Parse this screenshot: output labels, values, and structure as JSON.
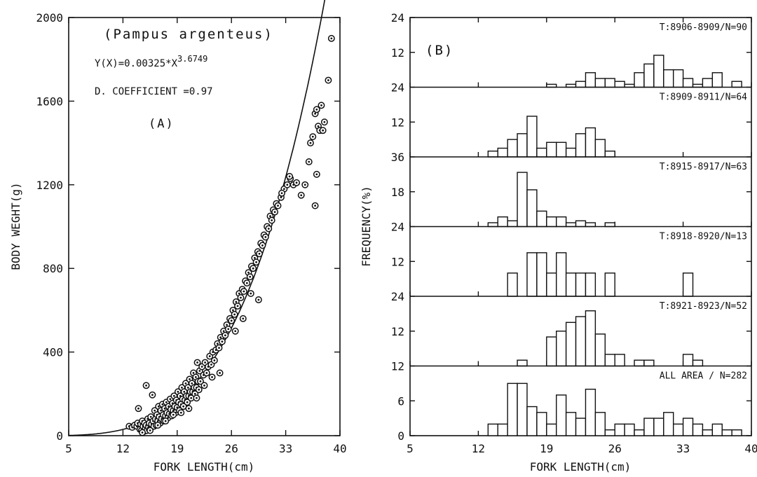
{
  "chart_data": [
    {
      "panel": "A",
      "type": "scatter",
      "species_label": "(Pampus argenteus)",
      "equation_text": "Y(X)=0.00325*X",
      "equation_exponent_text": "3.6749",
      "coefficient_text": "D. COEFFICIENT =0.97",
      "panel_label": "(A)",
      "xlabel": "FORK LENGTH(cm)",
      "ylabel": "BODY WEGHT(g)",
      "xlim": [
        5,
        40
      ],
      "ylim": [
        0,
        2000
      ],
      "x_ticks": [
        "5",
        "12",
        "19",
        "26",
        "33",
        "40"
      ],
      "y_ticks": [
        "0",
        "400",
        "800",
        "1200",
        "1600",
        "2000"
      ],
      "curve": {
        "a": 0.00325,
        "b": 3.6749,
        "x_range": [
          5,
          38.9
        ]
      },
      "points": [
        [
          12.8,
          45
        ],
        [
          13.2,
          40
        ],
        [
          13.5,
          50
        ],
        [
          13.8,
          45
        ],
        [
          13.9,
          60
        ],
        [
          14,
          130
        ],
        [
          14.2,
          30
        ],
        [
          14.3,
          55
        ],
        [
          14.4,
          25
        ],
        [
          14.5,
          70
        ],
        [
          14.6,
          45
        ],
        [
          14.7,
          20
        ],
        [
          14.8,
          60
        ],
        [
          14.9,
          35
        ],
        [
          15,
          50
        ],
        [
          15,
          240
        ],
        [
          15.1,
          25
        ],
        [
          15.2,
          80
        ],
        [
          15.3,
          40
        ],
        [
          15.4,
          60
        ],
        [
          15.5,
          30
        ],
        [
          15.6,
          90
        ],
        [
          15.7,
          55
        ],
        [
          15.8,
          195
        ],
        [
          15.9,
          70
        ],
        [
          16,
          45
        ],
        [
          16.1,
          120
        ],
        [
          16.2,
          80
        ],
        [
          16.3,
          50
        ],
        [
          16.4,
          100
        ],
        [
          16.5,
          70
        ],
        [
          16.6,
          140
        ],
        [
          16.7,
          90
        ],
        [
          16.8,
          60
        ],
        [
          16.9,
          120
        ],
        [
          17,
          80
        ],
        [
          17.1,
          150
        ],
        [
          17.2,
          100
        ],
        [
          17.3,
          70
        ],
        [
          17.4,
          130
        ],
        [
          17.5,
          95
        ],
        [
          17.6,
          160
        ],
        [
          17.7,
          110
        ],
        [
          17.8,
          85
        ],
        [
          17.9,
          140
        ],
        [
          18,
          105
        ],
        [
          18.1,
          175
        ],
        [
          18.2,
          125
        ],
        [
          18.3,
          95
        ],
        [
          18.4,
          155
        ],
        [
          18.5,
          120
        ],
        [
          18.6,
          190
        ],
        [
          18.7,
          140
        ],
        [
          18.8,
          110
        ],
        [
          18.9,
          170
        ],
        [
          19,
          135
        ],
        [
          19.1,
          210
        ],
        [
          19.2,
          160
        ],
        [
          19.3,
          120
        ],
        [
          19.4,
          190
        ],
        [
          19.5,
          150
        ],
        [
          19.6,
          230
        ],
        [
          19.7,
          175
        ],
        [
          19.8,
          140
        ],
        [
          19.9,
          210
        ],
        [
          20,
          170
        ],
        [
          20.1,
          250
        ],
        [
          20.2,
          190
        ],
        [
          20.3,
          160
        ],
        [
          20.4,
          230
        ],
        [
          20.5,
          190
        ],
        [
          20.6,
          270
        ],
        [
          20.7,
          210
        ],
        [
          20.8,
          180
        ],
        [
          20.9,
          250
        ],
        [
          21,
          210
        ],
        [
          21.1,
          300
        ],
        [
          21.2,
          230
        ],
        [
          21.3,
          200
        ],
        [
          21.4,
          280
        ],
        [
          21.5,
          230
        ],
        [
          21.6,
          350
        ],
        [
          21.7,
          260
        ],
        [
          21.8,
          220
        ],
        [
          21.9,
          310
        ],
        [
          22,
          260
        ],
        [
          22.2,
          330
        ],
        [
          22.4,
          290
        ],
        [
          22.6,
          350
        ],
        [
          22.8,
          300
        ],
        [
          23,
          330
        ],
        [
          23.2,
          380
        ],
        [
          23.4,
          340
        ],
        [
          23.6,
          400
        ],
        [
          23.8,
          360
        ],
        [
          24,
          410
        ],
        [
          24.2,
          440
        ],
        [
          24.4,
          420
        ],
        [
          24.6,
          470
        ],
        [
          24.8,
          450
        ],
        [
          25,
          500
        ],
        [
          25.2,
          480
        ],
        [
          25.4,
          530
        ],
        [
          25.6,
          510
        ],
        [
          25.8,
          560
        ],
        [
          26,
          550
        ],
        [
          26.2,
          600
        ],
        [
          26.4,
          580
        ],
        [
          26.6,
          640
        ],
        [
          26.8,
          620
        ],
        [
          27,
          680
        ],
        [
          27.2,
          660
        ],
        [
          27.4,
          700
        ],
        [
          27.6,
          690
        ],
        [
          27.8,
          740
        ],
        [
          28,
          730
        ],
        [
          28.2,
          780
        ],
        [
          28.4,
          760
        ],
        [
          28.6,
          810
        ],
        [
          28.8,
          800
        ],
        [
          29,
          850
        ],
        [
          29.2,
          830
        ],
        [
          29.4,
          880
        ],
        [
          29.6,
          870
        ],
        [
          29.8,
          920
        ],
        [
          30,
          910
        ],
        [
          30.2,
          960
        ],
        [
          30.4,
          950
        ],
        [
          30.6,
          1000
        ],
        [
          30.8,
          990
        ],
        [
          31,
          1050
        ],
        [
          31.2,
          1030
        ],
        [
          31.4,
          1080
        ],
        [
          31.6,
          1070
        ],
        [
          31.8,
          1110
        ],
        [
          32,
          1100
        ],
        [
          32.4,
          1140
        ],
        [
          32.8,
          1180
        ],
        [
          33.2,
          1200
        ],
        [
          33.6,
          1230
        ],
        [
          34,
          1200
        ],
        [
          34.4,
          1210
        ],
        [
          35,
          1150
        ],
        [
          35.5,
          1200
        ],
        [
          36,
          1310
        ],
        [
          36.2,
          1400
        ],
        [
          36.5,
          1430
        ],
        [
          36.8,
          1540
        ],
        [
          37,
          1560
        ],
        [
          37.2,
          1480
        ],
        [
          37.4,
          1460
        ],
        [
          37.6,
          1580
        ],
        [
          37.8,
          1460
        ],
        [
          38,
          1500
        ],
        [
          38.5,
          1700
        ],
        [
          38.9,
          1900
        ],
        [
          37,
          1250
        ],
        [
          36.8,
          1100
        ],
        [
          33.5,
          1240
        ],
        [
          32.5,
          1160
        ],
        [
          29.5,
          650
        ],
        [
          28.5,
          680
        ],
        [
          27.5,
          560
        ],
        [
          26.5,
          500
        ],
        [
          24.5,
          300
        ],
        [
          23.5,
          280
        ],
        [
          22.5,
          240
        ],
        [
          21.5,
          180
        ],
        [
          20.5,
          130
        ],
        [
          19.5,
          110
        ],
        [
          18.5,
          100
        ],
        [
          17.5,
          70
        ],
        [
          16.5,
          50
        ],
        [
          15.5,
          25
        ],
        [
          14.5,
          15
        ]
      ]
    },
    {
      "panel": "B",
      "type": "bar",
      "panel_label": "(B)",
      "xlabel": "FORK LENGTH(cm)",
      "ylabel": "FREQUENCY(%)",
      "xlim": [
        5,
        40
      ],
      "x_ticks": [
        "5",
        "12",
        "19",
        "26",
        "33",
        "40"
      ],
      "bin_width": 1,
      "series": [
        {
          "name": "T:8906-8909/N=90",
          "ymax": 24,
          "y_ticks": [
            "24",
            "12"
          ],
          "bins": [
            [
              19,
              1
            ],
            [
              21,
              1
            ],
            [
              22,
              2
            ],
            [
              23,
              5
            ],
            [
              24,
              3
            ],
            [
              25,
              3
            ],
            [
              26,
              2
            ],
            [
              27,
              1
            ],
            [
              28,
              5
            ],
            [
              29,
              8
            ],
            [
              30,
              11
            ],
            [
              31,
              6
            ],
            [
              32,
              6
            ],
            [
              33,
              3
            ],
            [
              34,
              1
            ],
            [
              35,
              3
            ],
            [
              36,
              5
            ],
            [
              38,
              2
            ]
          ]
        },
        {
          "name": "T:8909-8911/N=64",
          "ymax": 24,
          "y_ticks": [
            "24",
            "12"
          ],
          "bins": [
            [
              13,
              2
            ],
            [
              14,
              3
            ],
            [
              15,
              6
            ],
            [
              16,
              8
            ],
            [
              17,
              14
            ],
            [
              18,
              3
            ],
            [
              19,
              5
            ],
            [
              20,
              5
            ],
            [
              21,
              3
            ],
            [
              22,
              8
            ],
            [
              23,
              10
            ],
            [
              24,
              6
            ],
            [
              25,
              2
            ]
          ]
        },
        {
          "name": "T:8915-8917/N=63",
          "ymax": 36,
          "y_ticks": [
            "36",
            "18"
          ],
          "bins": [
            [
              13,
              2
            ],
            [
              14,
              5
            ],
            [
              15,
              3
            ],
            [
              16,
              28
            ],
            [
              17,
              19
            ],
            [
              18,
              8
            ],
            [
              19,
              5
            ],
            [
              20,
              5
            ],
            [
              21,
              2
            ],
            [
              22,
              3
            ],
            [
              23,
              2
            ],
            [
              25,
              2
            ]
          ]
        },
        {
          "name": "T:8918-8920/N=13",
          "ymax": 24,
          "y_ticks": [
            "24",
            "12"
          ],
          "bins": [
            [
              15,
              8
            ],
            [
              17,
              15
            ],
            [
              18,
              15
            ],
            [
              19,
              8
            ],
            [
              20,
              15
            ],
            [
              21,
              8
            ],
            [
              22,
              8
            ],
            [
              23,
              8
            ],
            [
              25,
              8
            ],
            [
              33,
              8
            ]
          ]
        },
        {
          "name": "T:8921-8923/N=52",
          "ymax": 24,
          "y_ticks": [
            "24",
            "12"
          ],
          "bins": [
            [
              16,
              2
            ],
            [
              19,
              10
            ],
            [
              20,
              12
            ],
            [
              21,
              15
            ],
            [
              22,
              17
            ],
            [
              23,
              19
            ],
            [
              24,
              11
            ],
            [
              25,
              4
            ],
            [
              26,
              4
            ],
            [
              28,
              2
            ],
            [
              29,
              2
            ],
            [
              33,
              4
            ],
            [
              34,
              2
            ]
          ]
        },
        {
          "name": "ALL AREA / N=282",
          "ymax": 12,
          "y_ticks": [
            "12",
            "6",
            "0"
          ],
          "bins": [
            [
              13,
              2
            ],
            [
              14,
              2
            ],
            [
              15,
              9
            ],
            [
              16,
              9
            ],
            [
              17,
              5
            ],
            [
              18,
              4
            ],
            [
              19,
              2
            ],
            [
              20,
              7
            ],
            [
              21,
              4
            ],
            [
              22,
              3
            ],
            [
              23,
              8
            ],
            [
              24,
              4
            ],
            [
              25,
              1
            ],
            [
              26,
              2
            ],
            [
              27,
              2
            ],
            [
              28,
              1
            ],
            [
              29,
              3
            ],
            [
              30,
              3
            ],
            [
              31,
              4
            ],
            [
              32,
              2
            ],
            [
              33,
              3
            ],
            [
              34,
              2
            ],
            [
              35,
              1
            ],
            [
              36,
              2
            ],
            [
              37,
              1
            ],
            [
              38,
              1
            ]
          ]
        }
      ]
    }
  ]
}
